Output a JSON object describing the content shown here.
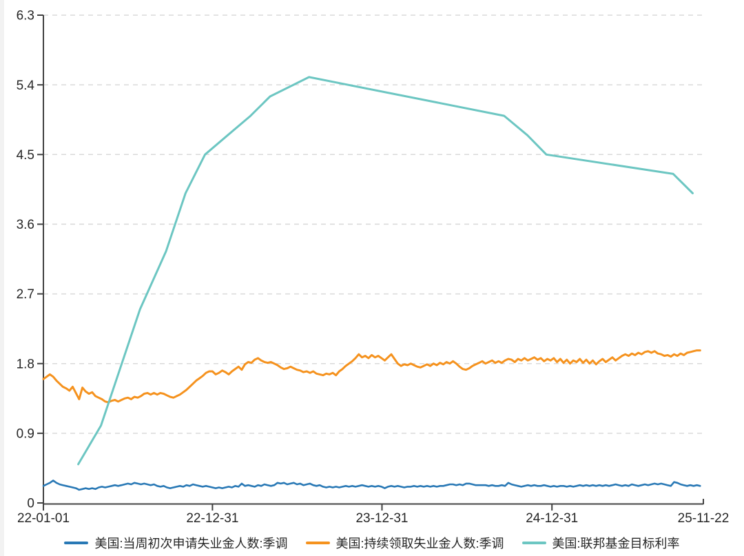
{
  "chart_data": {
    "type": "line",
    "title": "",
    "xlabel": "",
    "ylabel": "",
    "grid": "horizontal-dashed",
    "legend_position": "bottom",
    "x_axis": {
      "start_date": "2022-01-01",
      "end_date": "2025-11-22",
      "ticks": [
        {
          "date": "2022-01-01",
          "label": "22-01-01"
        },
        {
          "date": "2022-12-31",
          "label": "22-12-31"
        },
        {
          "date": "2023-12-31",
          "label": "23-12-31"
        },
        {
          "date": "2024-12-31",
          "label": "24-12-31"
        },
        {
          "date": "2025-11-22",
          "label": "25-11-22"
        }
      ]
    },
    "y_axis": {
      "min": 0,
      "max": 6.3,
      "ticks": [
        0,
        0.9,
        1.8,
        2.7,
        3.6,
        4.5,
        5.4,
        6.3
      ],
      "tick_labels": [
        "0",
        "0.9",
        "1.8",
        "2.7",
        "3.6",
        "4.5",
        "5.4",
        "6.3"
      ]
    },
    "series": [
      {
        "name": "美国:当周初次申请失业金人数:季调",
        "color": "#2878b5",
        "width": 2.6,
        "unit": "million persons",
        "frequency": "weekly",
        "start_date": "2022-01-01",
        "interval_days": 7,
        "values": [
          0.22,
          0.24,
          0.26,
          0.29,
          0.26,
          0.24,
          0.23,
          0.22,
          0.21,
          0.2,
          0.19,
          0.17,
          0.18,
          0.19,
          0.18,
          0.19,
          0.18,
          0.2,
          0.21,
          0.2,
          0.21,
          0.22,
          0.23,
          0.22,
          0.23,
          0.24,
          0.25,
          0.24,
          0.26,
          0.25,
          0.24,
          0.25,
          0.24,
          0.23,
          0.24,
          0.22,
          0.21,
          0.22,
          0.2,
          0.19,
          0.2,
          0.21,
          0.22,
          0.21,
          0.23,
          0.22,
          0.24,
          0.23,
          0.22,
          0.21,
          0.22,
          0.21,
          0.2,
          0.19,
          0.2,
          0.19,
          0.2,
          0.21,
          0.2,
          0.22,
          0.21,
          0.25,
          0.22,
          0.23,
          0.22,
          0.21,
          0.23,
          0.22,
          0.24,
          0.23,
          0.22,
          0.23,
          0.26,
          0.25,
          0.26,
          0.24,
          0.25,
          0.26,
          0.24,
          0.25,
          0.23,
          0.24,
          0.25,
          0.23,
          0.22,
          0.23,
          0.21,
          0.2,
          0.21,
          0.2,
          0.21,
          0.2,
          0.21,
          0.22,
          0.21,
          0.22,
          0.21,
          0.22,
          0.23,
          0.22,
          0.21,
          0.22,
          0.21,
          0.22,
          0.21,
          0.19,
          0.21,
          0.22,
          0.21,
          0.22,
          0.21,
          0.2,
          0.21,
          0.21,
          0.22,
          0.21,
          0.22,
          0.21,
          0.22,
          0.21,
          0.22,
          0.21,
          0.22,
          0.22,
          0.23,
          0.24,
          0.24,
          0.23,
          0.24,
          0.23,
          0.25,
          0.25,
          0.24,
          0.23,
          0.23,
          0.23,
          0.23,
          0.22,
          0.23,
          0.22,
          0.22,
          0.23,
          0.22,
          0.26,
          0.24,
          0.23,
          0.22,
          0.21,
          0.22,
          0.23,
          0.22,
          0.23,
          0.22,
          0.22,
          0.23,
          0.22,
          0.21,
          0.22,
          0.21,
          0.22,
          0.22,
          0.21,
          0.22,
          0.21,
          0.22,
          0.23,
          0.22,
          0.23,
          0.22,
          0.23,
          0.22,
          0.23,
          0.22,
          0.23,
          0.22,
          0.23,
          0.24,
          0.23,
          0.22,
          0.23,
          0.22,
          0.24,
          0.23,
          0.22,
          0.23,
          0.24,
          0.23,
          0.24,
          0.25,
          0.24,
          0.25,
          0.24,
          0.23,
          0.22,
          0.27,
          0.26,
          0.24,
          0.23,
          0.22,
          0.23,
          0.22,
          0.23,
          0.22
        ]
      },
      {
        "name": "美国:持续领取失业金人数:季调",
        "color": "#f5921e",
        "width": 3,
        "unit": "million persons",
        "frequency": "weekly",
        "start_date": "2022-01-01",
        "interval_days": 7,
        "values": [
          1.6,
          1.63,
          1.66,
          1.63,
          1.58,
          1.54,
          1.5,
          1.48,
          1.45,
          1.5,
          1.42,
          1.34,
          1.49,
          1.44,
          1.41,
          1.43,
          1.38,
          1.36,
          1.34,
          1.31,
          1.3,
          1.32,
          1.33,
          1.31,
          1.33,
          1.35,
          1.36,
          1.34,
          1.37,
          1.36,
          1.38,
          1.41,
          1.42,
          1.4,
          1.42,
          1.4,
          1.42,
          1.41,
          1.39,
          1.37,
          1.36,
          1.38,
          1.4,
          1.43,
          1.46,
          1.5,
          1.54,
          1.58,
          1.61,
          1.64,
          1.68,
          1.7,
          1.7,
          1.66,
          1.68,
          1.71,
          1.69,
          1.66,
          1.7,
          1.73,
          1.76,
          1.72,
          1.79,
          1.82,
          1.81,
          1.85,
          1.87,
          1.84,
          1.82,
          1.81,
          1.82,
          1.8,
          1.78,
          1.75,
          1.73,
          1.74,
          1.76,
          1.74,
          1.72,
          1.71,
          1.69,
          1.7,
          1.68,
          1.7,
          1.67,
          1.66,
          1.65,
          1.67,
          1.66,
          1.68,
          1.65,
          1.7,
          1.73,
          1.77,
          1.8,
          1.83,
          1.87,
          1.92,
          1.88,
          1.9,
          1.87,
          1.91,
          1.88,
          1.9,
          1.87,
          1.84,
          1.88,
          1.92,
          1.86,
          1.8,
          1.77,
          1.79,
          1.78,
          1.8,
          1.78,
          1.76,
          1.75,
          1.77,
          1.79,
          1.77,
          1.8,
          1.78,
          1.81,
          1.79,
          1.82,
          1.8,
          1.83,
          1.8,
          1.76,
          1.73,
          1.72,
          1.74,
          1.77,
          1.79,
          1.81,
          1.83,
          1.8,
          1.82,
          1.84,
          1.81,
          1.83,
          1.81,
          1.84,
          1.86,
          1.85,
          1.82,
          1.86,
          1.84,
          1.87,
          1.84,
          1.86,
          1.88,
          1.85,
          1.87,
          1.83,
          1.86,
          1.84,
          1.87,
          1.82,
          1.86,
          1.81,
          1.85,
          1.8,
          1.84,
          1.82,
          1.86,
          1.81,
          1.85,
          1.8,
          1.84,
          1.79,
          1.83,
          1.86,
          1.82,
          1.85,
          1.88,
          1.84,
          1.87,
          1.9,
          1.92,
          1.9,
          1.93,
          1.91,
          1.94,
          1.92,
          1.95,
          1.96,
          1.94,
          1.96,
          1.93,
          1.92,
          1.9,
          1.91,
          1.89,
          1.92,
          1.9,
          1.93,
          1.91,
          1.94,
          1.95,
          1.96,
          1.97,
          1.97
        ]
      },
      {
        "name": "美国:联邦基金目标利率",
        "color": "#6cc6c2",
        "width": 3,
        "unit": "%",
        "frequency": "on-change",
        "points": [
          [
            "2022-03-17",
            0.5
          ],
          [
            "2022-05-05",
            1.0
          ],
          [
            "2022-06-16",
            1.75
          ],
          [
            "2022-07-28",
            2.5
          ],
          [
            "2022-09-22",
            3.25
          ],
          [
            "2022-11-03",
            4.0
          ],
          [
            "2022-12-15",
            4.5
          ],
          [
            "2023-02-02",
            4.75
          ],
          [
            "2023-03-23",
            5.0
          ],
          [
            "2023-05-04",
            5.25
          ],
          [
            "2023-07-27",
            5.5
          ],
          [
            "2024-09-19",
            5.0
          ],
          [
            "2024-11-08",
            4.75
          ],
          [
            "2024-12-19",
            4.5
          ],
          [
            "2025-09-18",
            4.25
          ],
          [
            "2025-10-30",
            4.0
          ]
        ]
      }
    ],
    "colors": {
      "grid": "#d9d9d9",
      "axis": "#404040",
      "text": "#262626",
      "background": "#ffffff"
    }
  },
  "legend": {
    "items": [
      {
        "label": "美国:当周初次申请失业金人数:季调",
        "color": "#2878b5"
      },
      {
        "label": "美国:持续领取失业金人数:季调",
        "color": "#f5921e"
      },
      {
        "label": "美国:联邦基金目标利率",
        "color": "#6cc6c2"
      }
    ]
  }
}
